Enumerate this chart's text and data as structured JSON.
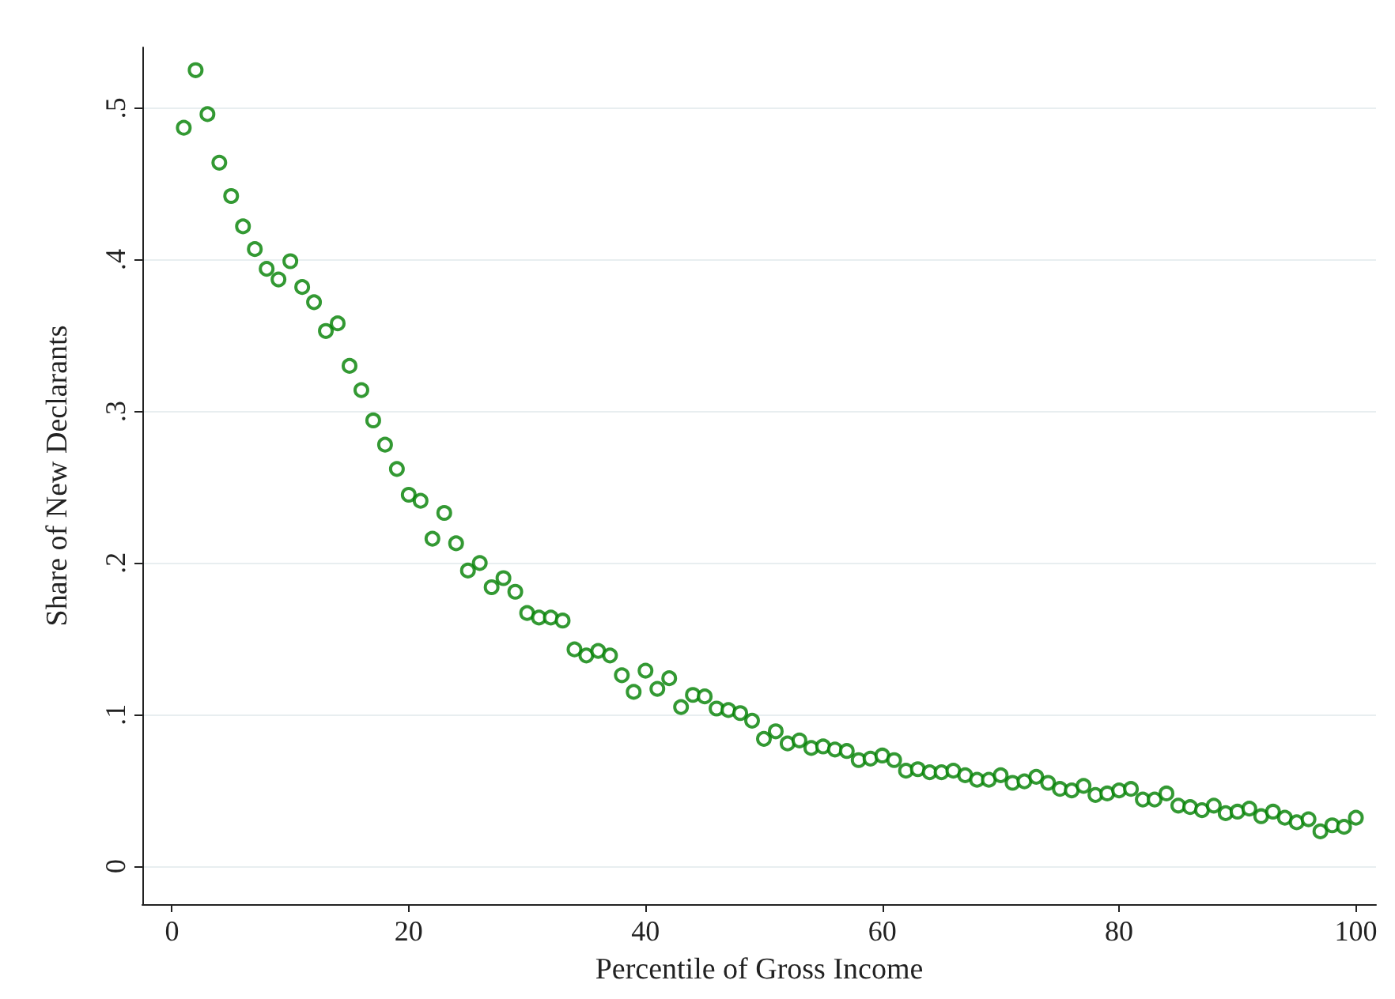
{
  "chart_data": {
    "type": "scatter",
    "xlabel": "Percentile of Gross Income",
    "ylabel": "Share of New Declarants",
    "x": [
      1,
      2,
      3,
      4,
      5,
      6,
      7,
      8,
      9,
      10,
      11,
      12,
      13,
      14,
      15,
      16,
      17,
      18,
      19,
      20,
      21,
      22,
      23,
      24,
      25,
      26,
      27,
      28,
      29,
      30,
      31,
      32,
      33,
      34,
      35,
      36,
      37,
      38,
      39,
      40,
      41,
      42,
      43,
      44,
      45,
      46,
      47,
      48,
      49,
      50,
      51,
      52,
      53,
      54,
      55,
      56,
      57,
      58,
      59,
      60,
      61,
      62,
      63,
      64,
      65,
      66,
      67,
      68,
      69,
      70,
      71,
      72,
      73,
      74,
      75,
      76,
      77,
      78,
      79,
      80,
      81,
      82,
      83,
      84,
      85,
      86,
      87,
      88,
      89,
      90,
      91,
      92,
      93,
      94,
      95,
      96,
      97,
      98,
      99,
      100
    ],
    "series": [
      {
        "color": "#008000",
        "values": [
          0.487,
          0.525,
          0.496,
          0.464,
          0.442,
          0.422,
          0.407,
          0.394,
          0.387,
          0.399,
          0.382,
          0.372,
          0.353,
          0.358,
          0.33,
          0.314,
          0.294,
          0.278,
          0.262,
          0.245,
          0.241,
          0.216,
          0.233,
          0.213,
          0.195,
          0.2,
          0.184,
          0.19,
          0.181,
          0.167,
          0.164,
          0.164,
          0.162,
          0.143,
          0.139,
          0.142,
          0.139,
          0.126,
          0.115,
          0.129,
          0.117,
          0.124,
          0.105,
          0.113,
          0.112,
          0.104,
          0.103,
          0.101,
          0.096,
          0.084,
          0.089,
          0.081,
          0.083,
          0.078,
          0.079,
          0.077,
          0.076,
          0.07,
          0.071,
          0.073,
          0.07,
          0.063,
          0.064,
          0.062,
          0.062,
          0.063,
          0.06,
          0.057,
          0.057,
          0.06,
          0.055,
          0.056,
          0.059,
          0.055,
          0.051,
          0.05,
          0.053,
          0.047,
          0.048,
          0.05,
          0.051,
          0.044,
          0.044,
          0.048,
          0.04,
          0.039,
          0.037,
          0.04,
          0.035,
          0.036,
          0.038,
          0.033,
          0.036,
          0.032,
          0.029,
          0.031,
          0.023,
          0.027,
          0.026,
          0.032
        ]
      }
    ],
    "xlim": [
      -2.5,
      101.7
    ],
    "xticks": [
      0,
      20,
      40,
      60,
      80,
      100
    ],
    "ylim": [
      -0.025,
      0.54
    ],
    "yticks": [
      {
        "value": 0,
        "label": "0"
      },
      {
        "value": 0.1,
        "label": ".1"
      },
      {
        "value": 0.2,
        "label": ".2"
      },
      {
        "value": 0.3,
        "label": ".3"
      },
      {
        "value": 0.4,
        "label": ".4"
      },
      {
        "value": 0.5,
        "label": ".5"
      }
    ],
    "grid": "y",
    "marker": "circle"
  }
}
